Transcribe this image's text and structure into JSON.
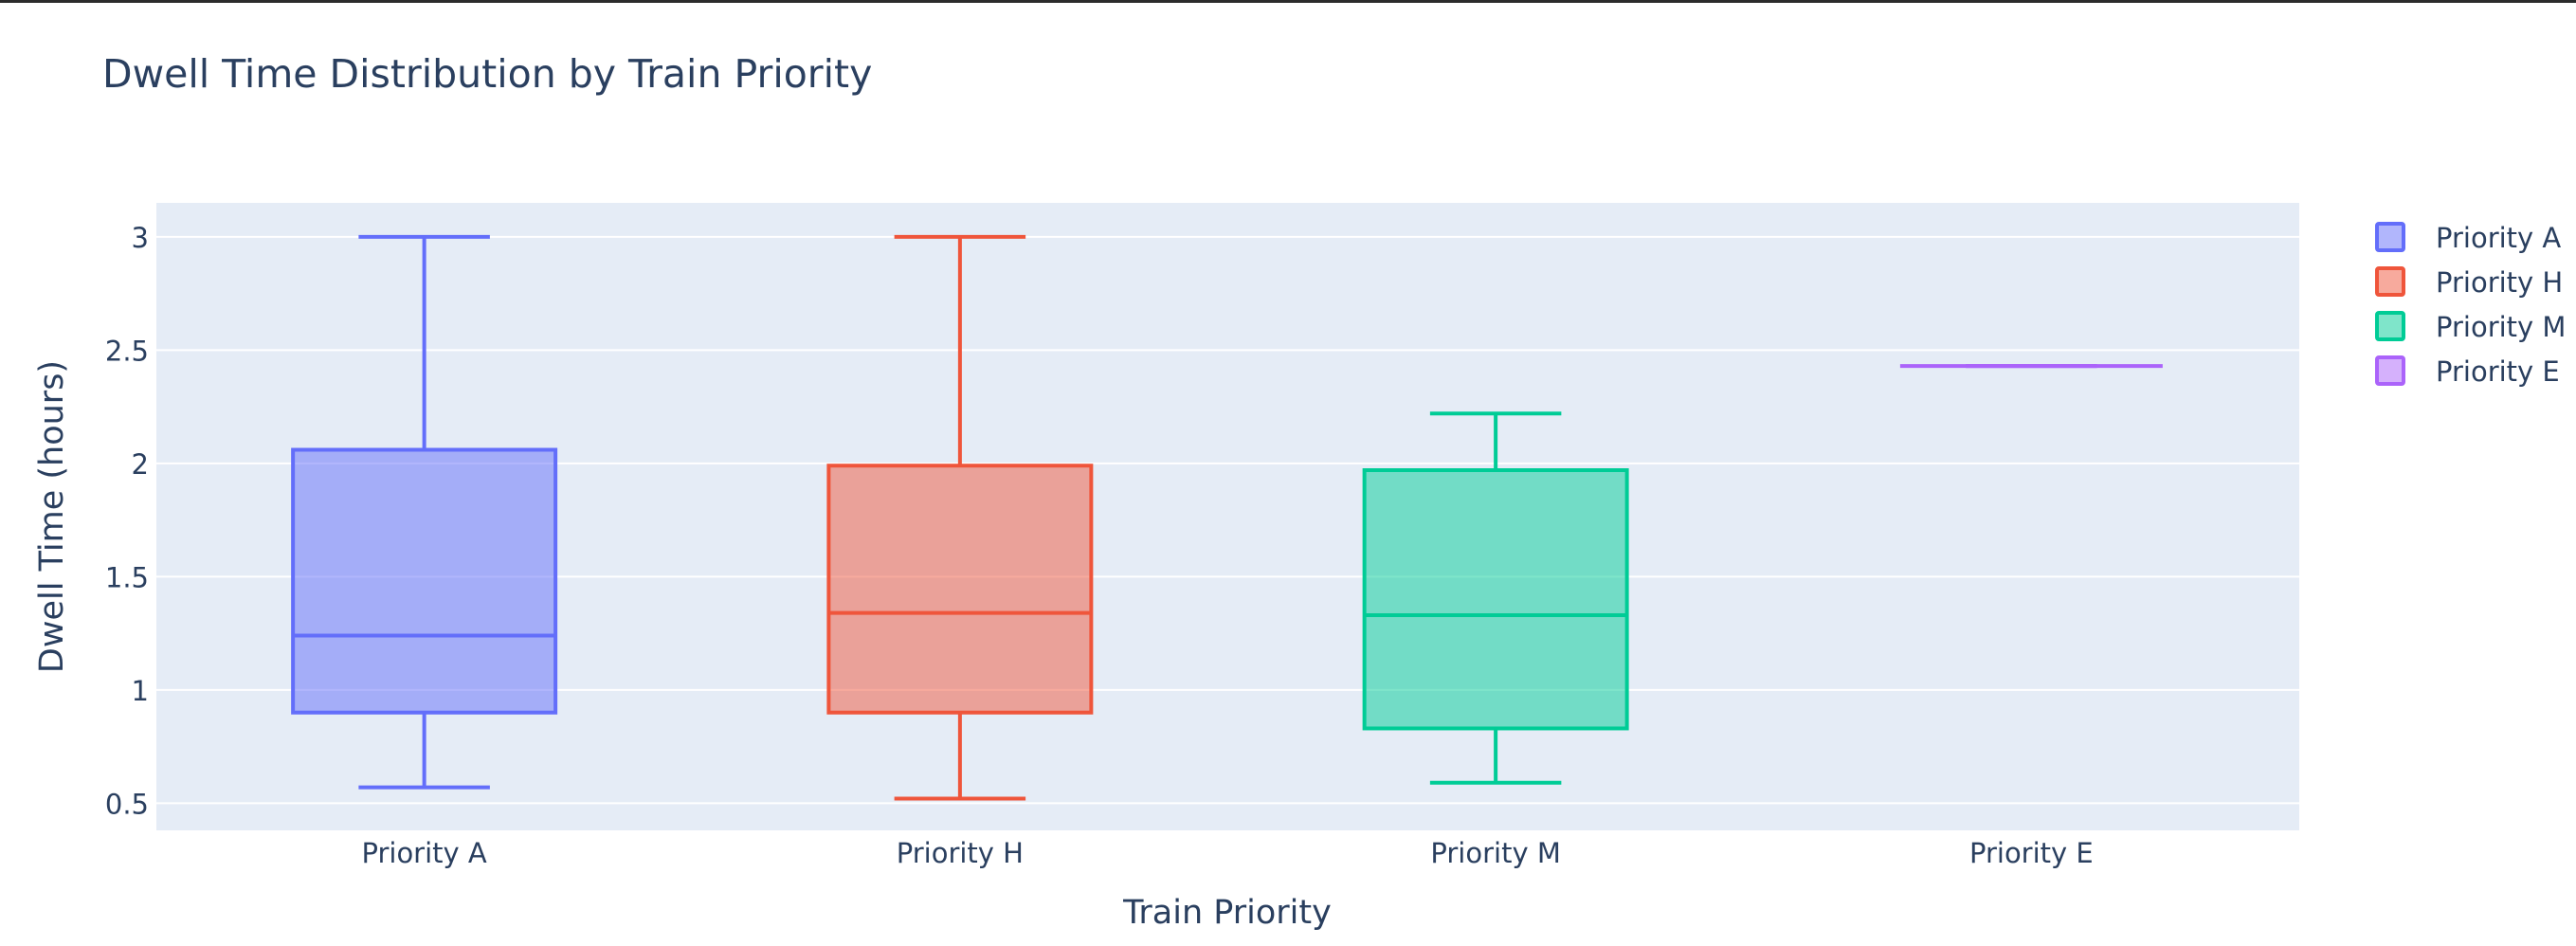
{
  "chart_data": {
    "type": "box",
    "title": "Dwell Time Distribution by Train Priority",
    "xlabel": "Train Priority",
    "ylabel": "Dwell Time (hours)",
    "ylim": [
      0.38,
      3.15
    ],
    "yticks": [
      0.5,
      1,
      1.5,
      2,
      2.5,
      3
    ],
    "ytick_labels": [
      "0.5",
      "1",
      "1.5",
      "2",
      "2.5",
      "3"
    ],
    "categories": [
      "Priority A",
      "Priority H",
      "Priority M",
      "Priority E"
    ],
    "grid": true,
    "legend_position": "right",
    "series": [
      {
        "name": "Priority A",
        "color": "#636efa",
        "min": 0.57,
        "q1": 0.9,
        "median": 1.24,
        "q3": 2.06,
        "max": 3.0
      },
      {
        "name": "Priority H",
        "color": "#ef553b",
        "min": 0.52,
        "q1": 0.9,
        "median": 1.34,
        "q3": 1.99,
        "max": 3.0
      },
      {
        "name": "Priority M",
        "color": "#00cc96",
        "min": 0.59,
        "q1": 0.83,
        "median": 1.33,
        "q3": 1.97,
        "max": 2.22
      },
      {
        "name": "Priority E",
        "color": "#ab63fa",
        "min": 2.43,
        "q1": 2.43,
        "median": 2.43,
        "q3": 2.43,
        "max": 2.43
      }
    ]
  }
}
